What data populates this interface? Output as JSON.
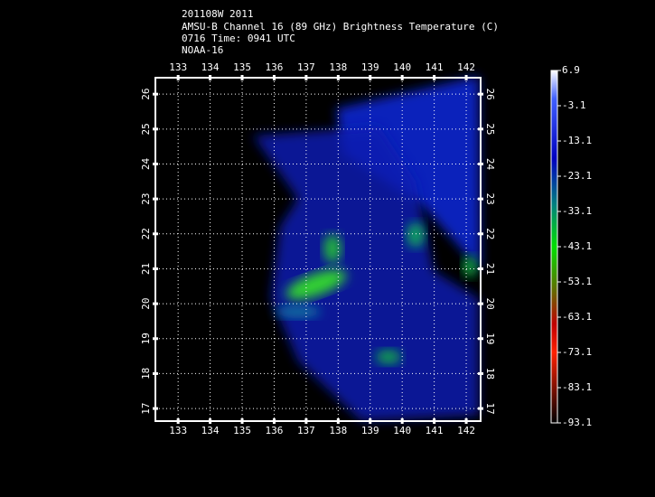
{
  "header": {
    "lines": [
      "201108W 2011",
      "AMSU-B Channel 16 (89 GHz) Brightness Temperature (C)",
      "0716 Time: 0941 UTC",
      "NOAA-16"
    ]
  },
  "map": {
    "lonlim": [
      132.29,
      142.45
    ],
    "lon_ticks": [
      133,
      134,
      135,
      136,
      137,
      138,
      139,
      140,
      141,
      142
    ],
    "latlim": [
      16.64,
      26.47
    ],
    "lat_ticks": [
      17,
      18,
      19,
      20,
      21,
      22,
      23,
      24,
      25,
      26
    ]
  },
  "colorbar": {
    "lim": [
      -93.1,
      6.9
    ],
    "ticks": [
      6.9,
      -3.1,
      -13.1,
      -23.1,
      -33.1,
      -43.1,
      -53.1,
      -63.1,
      -73.1,
      -83.1,
      -93.1
    ]
  }
}
